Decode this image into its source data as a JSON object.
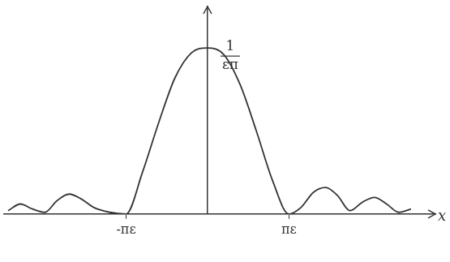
{
  "chart_data": {
    "type": "line",
    "x": [
      -2.45,
      -2.3,
      -2.15,
      -2.0,
      -1.85,
      -1.7,
      -1.55,
      -1.4,
      -1.2,
      -1.0,
      -0.8,
      -0.6,
      -0.4,
      -0.2,
      0,
      0.2,
      0.4,
      0.6,
      0.8,
      1.0,
      1.15,
      1.3,
      1.45,
      1.6,
      1.75,
      1.9,
      2.05,
      2.2,
      2.35,
      2.5
    ],
    "values": [
      0.02,
      0.06,
      0.03,
      0.01,
      0.08,
      0.12,
      0.09,
      0.04,
      0.01,
      0,
      0.25,
      0.55,
      0.82,
      0.97,
      1,
      0.96,
      0.78,
      0.5,
      0.2,
      0,
      0.04,
      0.13,
      0.16,
      0.11,
      0.02,
      0.07,
      0.1,
      0.06,
      0.01,
      0.03
    ],
    "color": "#333333",
    "xlabel": "x",
    "xlim": [
      -2.5,
      2.8
    ],
    "xticks": [
      {
        "value": -1,
        "label": "-πε"
      },
      {
        "value": 1,
        "label": "πε"
      }
    ],
    "ylim": [
      0,
      1.25
    ],
    "annotations": [
      {
        "numerator": "1",
        "denominator": "επ",
        "x": 0,
        "y": 1
      }
    ],
    "grid": false,
    "tick_labels": "x"
  }
}
